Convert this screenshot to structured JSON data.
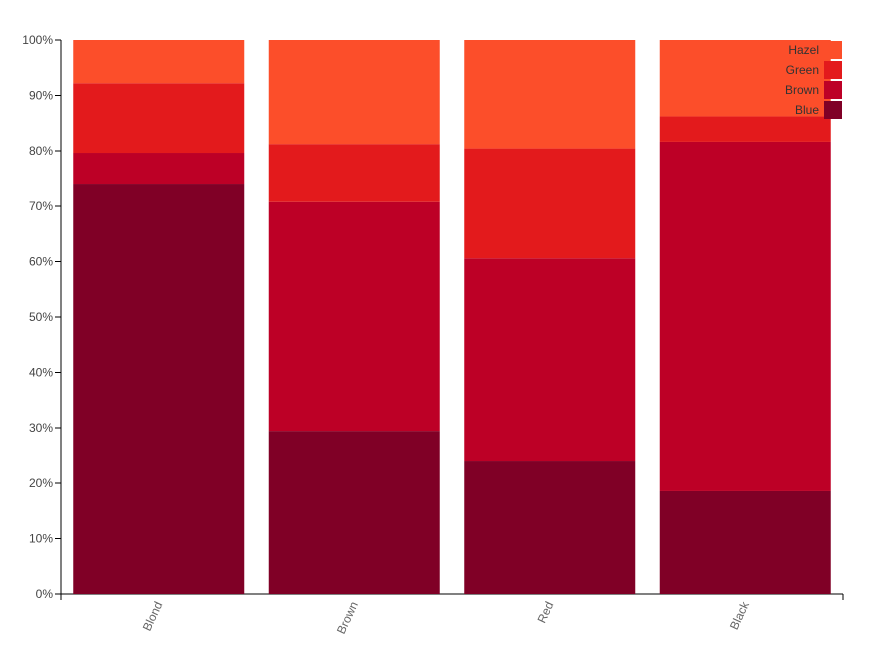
{
  "chart_data": {
    "type": "bar",
    "stacked": true,
    "normalized": true,
    "categories": [
      "Blond",
      "Brown",
      "Red",
      "Black"
    ],
    "series": [
      {
        "name": "Blue",
        "color": "#800026",
        "values": [
          74,
          29.4,
          24,
          18.6
        ]
      },
      {
        "name": "Brown",
        "color": "#bd0026",
        "values": [
          5.6,
          41.4,
          36.6,
          63
        ]
      },
      {
        "name": "Green",
        "color": "#e31a1c",
        "values": [
          12.6,
          10.4,
          19.8,
          4.6
        ]
      },
      {
        "name": "Hazel",
        "color": "#fc4e2a",
        "values": [
          7.8,
          18.8,
          19.6,
          13.8
        ]
      }
    ],
    "ylim": [
      0,
      100
    ],
    "yticks": [
      "0%",
      "10%",
      "20%",
      "30%",
      "40%",
      "50%",
      "60%",
      "70%",
      "80%",
      "90%",
      "100%"
    ],
    "xlabel": "",
    "ylabel": "",
    "legend": {
      "position": "top-right",
      "order": [
        "Hazel",
        "Green",
        "Brown",
        "Blue"
      ]
    }
  }
}
